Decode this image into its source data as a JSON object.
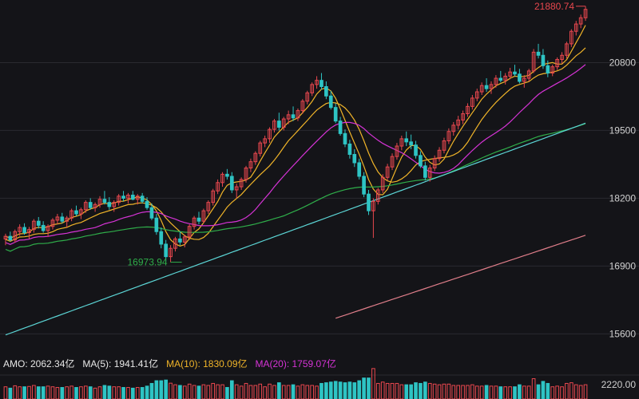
{
  "colors": {
    "background": "#141418",
    "grid": "#2a2a30",
    "up": "#e8474e",
    "down": "#2ec4c4",
    "ma5": "#e8e8e8",
    "ma10": "#f0b429",
    "ma20": "#d633d6",
    "ma60": "#2fae4a",
    "ma120": "#5cd6d6",
    "ma250": "#e07e8a",
    "amo_text": "#e6e6e6",
    "high_label": "#e8474e",
    "low_label": "#2fae4a"
  },
  "chart_data": {
    "type": "candlestick",
    "title": "",
    "y_ticks": [
      "20800",
      "19500",
      "18200",
      "16900",
      "15600"
    ],
    "ylim": [
      15300,
      22000
    ],
    "annotations": {
      "high": "21880.74",
      "low": "16973.94"
    },
    "volume_tick": "2220.00",
    "volume_legend": {
      "amo": "AMO: 2062.34亿",
      "ma5": "MA(5): 1941.41亿",
      "ma10": "MA(10): 1830.09亿",
      "ma20": "MA(20): 1759.07亿"
    },
    "candles": [
      [
        17420,
        17520,
        17300,
        17470
      ],
      [
        17470,
        17560,
        17380,
        17400
      ],
      [
        17400,
        17600,
        17350,
        17560
      ],
      [
        17560,
        17700,
        17480,
        17640
      ],
      [
        17640,
        17720,
        17500,
        17540
      ],
      [
        17540,
        17650,
        17420,
        17600
      ],
      [
        17600,
        17800,
        17540,
        17760
      ],
      [
        17760,
        17840,
        17620,
        17680
      ],
      [
        17680,
        17760,
        17540,
        17580
      ],
      [
        17580,
        17700,
        17460,
        17660
      ],
      [
        17660,
        17820,
        17600,
        17780
      ],
      [
        17780,
        17900,
        17700,
        17840
      ],
      [
        17840,
        17920,
        17720,
        17760
      ],
      [
        17760,
        17860,
        17640,
        17820
      ],
      [
        17820,
        18000,
        17760,
        17960
      ],
      [
        17960,
        18060,
        17860,
        17900
      ],
      [
        17900,
        18020,
        17800,
        17980
      ],
      [
        17980,
        18160,
        17920,
        18120
      ],
      [
        18120,
        18200,
        17980,
        18020
      ],
      [
        18020,
        18120,
        17940,
        18080
      ],
      [
        18080,
        18240,
        18020,
        18180
      ],
      [
        18180,
        18340,
        18080,
        18120
      ],
      [
        18120,
        18220,
        17980,
        18040
      ],
      [
        18040,
        18160,
        17940,
        18120
      ],
      [
        18120,
        18280,
        18060,
        18240
      ],
      [
        18240,
        18340,
        18140,
        18200
      ],
      [
        18200,
        18300,
        18100,
        18260
      ],
      [
        18260,
        18340,
        18160,
        18180
      ],
      [
        18180,
        18280,
        18080,
        18240
      ],
      [
        18240,
        18300,
        18100,
        18140
      ],
      [
        18140,
        18220,
        17980,
        18020
      ],
      [
        18020,
        18100,
        17780,
        17820
      ],
      [
        17820,
        17900,
        17500,
        17560
      ],
      [
        17560,
        17640,
        17240,
        17320
      ],
      [
        17320,
        17400,
        16980,
        17080
      ],
      [
        17080,
        17300,
        16973,
        17240
      ],
      [
        17240,
        17460,
        17180,
        17420
      ],
      [
        17420,
        17560,
        17300,
        17360
      ],
      [
        17360,
        17500,
        17260,
        17460
      ],
      [
        17460,
        17700,
        17400,
        17660
      ],
      [
        17660,
        17860,
        17600,
        17820
      ],
      [
        17820,
        17940,
        17700,
        17760
      ],
      [
        17760,
        18000,
        17720,
        17960
      ],
      [
        17960,
        18160,
        17900,
        18120
      ],
      [
        18120,
        18380,
        18060,
        18340
      ],
      [
        18340,
        18560,
        18280,
        18500
      ],
      [
        18500,
        18700,
        18420,
        18660
      ],
      [
        18660,
        18760,
        18560,
        18620
      ],
      [
        18620,
        18700,
        18300,
        18360
      ],
      [
        18360,
        18480,
        18200,
        18420
      ],
      [
        18420,
        18600,
        18360,
        18560
      ],
      [
        18560,
        18820,
        18500,
        18780
      ],
      [
        18780,
        18960,
        18700,
        18900
      ],
      [
        18900,
        19100,
        18840,
        19060
      ],
      [
        19060,
        19300,
        19000,
        19260
      ],
      [
        19260,
        19400,
        19180,
        19340
      ],
      [
        19340,
        19560,
        19260,
        19520
      ],
      [
        19520,
        19720,
        19460,
        19680
      ],
      [
        19680,
        19840,
        19500,
        19560
      ],
      [
        19560,
        19760,
        19500,
        19720
      ],
      [
        19720,
        19880,
        19620,
        19800
      ],
      [
        19800,
        19960,
        19680,
        19740
      ],
      [
        19740,
        19920,
        19680,
        19880
      ],
      [
        19880,
        20100,
        19820,
        20060
      ],
      [
        20060,
        20260,
        20000,
        20220
      ],
      [
        20220,
        20420,
        20160,
        20380
      ],
      [
        20380,
        20540,
        20300,
        20460
      ],
      [
        20460,
        20600,
        20280,
        20340
      ],
      [
        20340,
        20440,
        20100,
        20160
      ],
      [
        20160,
        20260,
        19900,
        19940
      ],
      [
        19940,
        20020,
        19640,
        19680
      ],
      [
        19680,
        19760,
        19400,
        19440
      ],
      [
        19440,
        19520,
        19180,
        19240
      ],
      [
        19240,
        19320,
        18960,
        19040
      ],
      [
        19040,
        19140,
        18800,
        18880
      ],
      [
        18880,
        18960,
        18560,
        18620
      ],
      [
        18620,
        18700,
        18220,
        18280
      ],
      [
        18280,
        18360,
        17880,
        17960
      ],
      [
        17960,
        18200,
        17440,
        18140
      ],
      [
        18140,
        18400,
        18080,
        18360
      ],
      [
        18360,
        18660,
        18300,
        18600
      ],
      [
        18600,
        18860,
        18540,
        18800
      ],
      [
        18800,
        19060,
        18740,
        19000
      ],
      [
        19000,
        19260,
        18940,
        19200
      ],
      [
        19200,
        19400,
        19120,
        19340
      ],
      [
        19340,
        19480,
        19200,
        19280
      ],
      [
        19280,
        19420,
        19140,
        19220
      ],
      [
        19220,
        19300,
        18960,
        19020
      ],
      [
        19020,
        19100,
        18780,
        18820
      ],
      [
        18820,
        18900,
        18540,
        18600
      ],
      [
        18600,
        18840,
        18520,
        18780
      ],
      [
        18780,
        19020,
        18720,
        18960
      ],
      [
        18960,
        19180,
        18900,
        19120
      ],
      [
        19120,
        19360,
        19060,
        19300
      ],
      [
        19300,
        19540,
        19240,
        19480
      ],
      [
        19480,
        19660,
        19400,
        19600
      ],
      [
        19600,
        19780,
        19520,
        19700
      ],
      [
        19700,
        19880,
        19620,
        19820
      ],
      [
        19820,
        20020,
        19760,
        19960
      ],
      [
        19960,
        20180,
        19900,
        20120
      ],
      [
        20120,
        20300,
        20060,
        20240
      ],
      [
        20240,
        20420,
        20180,
        20360
      ],
      [
        20360,
        20500,
        20240,
        20300
      ],
      [
        20300,
        20440,
        20200,
        20380
      ],
      [
        20380,
        20560,
        20320,
        20500
      ],
      [
        20500,
        20640,
        20420,
        20460
      ],
      [
        20460,
        20600,
        20380,
        20540
      ],
      [
        20540,
        20700,
        20480,
        20620
      ],
      [
        20620,
        20760,
        20540,
        20580
      ],
      [
        20580,
        20680,
        20400,
        20440
      ],
      [
        20440,
        20560,
        20320,
        20500
      ],
      [
        20500,
        20680,
        20440,
        20640
      ],
      [
        20640,
        21060,
        20600,
        21000
      ],
      [
        21000,
        21160,
        20880,
        20940
      ],
      [
        20940,
        21060,
        20680,
        20740
      ],
      [
        20740,
        20840,
        20520,
        20600
      ],
      [
        20600,
        20760,
        20540,
        20720
      ],
      [
        20720,
        20900,
        20660,
        20860
      ],
      [
        20860,
        21000,
        20780,
        20940
      ],
      [
        20940,
        21200,
        20880,
        21160
      ],
      [
        21160,
        21440,
        21100,
        21400
      ],
      [
        21400,
        21600,
        21320,
        21540
      ],
      [
        21540,
        21720,
        21460,
        21660
      ],
      [
        21660,
        21880.74,
        21600,
        21820
      ]
    ]
  }
}
